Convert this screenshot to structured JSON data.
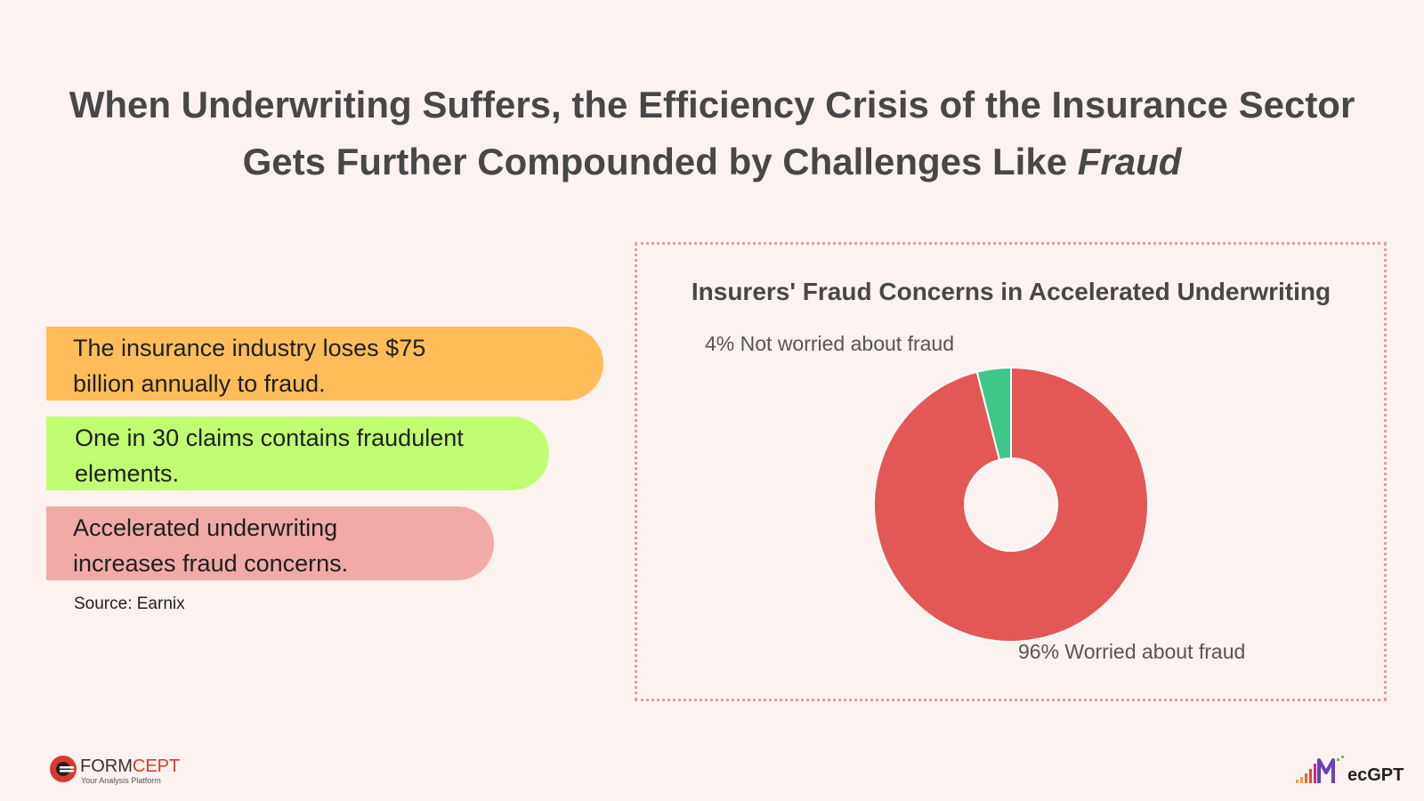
{
  "title": {
    "line1": "When Underwriting Suffers, the Efficiency Crisis of the Insurance Sector",
    "line2_prefix": "Gets Further Compounded by Challenges Like ",
    "line2_emphasis": "Fraud"
  },
  "facts": [
    {
      "line1": "The insurance industry loses $75",
      "line2": "billion annually to fraud.",
      "color": "#ffbd59"
    },
    {
      "line1": "One in 30 claims contains fraudulent",
      "line2": "elements.",
      "color": "#c1ff72"
    },
    {
      "line1": "Accelerated underwriting",
      "line2": "increases fraud concerns.",
      "color": "#f1aaa8"
    }
  ],
  "source": "Source: Earnix",
  "chart_data": {
    "type": "pie",
    "donut": true,
    "title": "Insurers' Fraud Concerns in Accelerated Underwriting",
    "slices": [
      {
        "label": "Worried about fraud",
        "value": 96,
        "display": "96% Worried about fraud",
        "color": "#e35855"
      },
      {
        "label": "Not worried about fraud",
        "value": 4,
        "display": "4% Not worried about fraud",
        "color": "#3fc78a"
      }
    ],
    "legend": "none"
  },
  "logos": {
    "left_brand_a": "FORM",
    "left_brand_b": "CEPT",
    "left_tagline": "Your Analysis Platform",
    "right_brand": "ecGPT",
    "left_icon": "formcept-logo-icon",
    "right_icon": "mecgpt-logo-icon"
  }
}
